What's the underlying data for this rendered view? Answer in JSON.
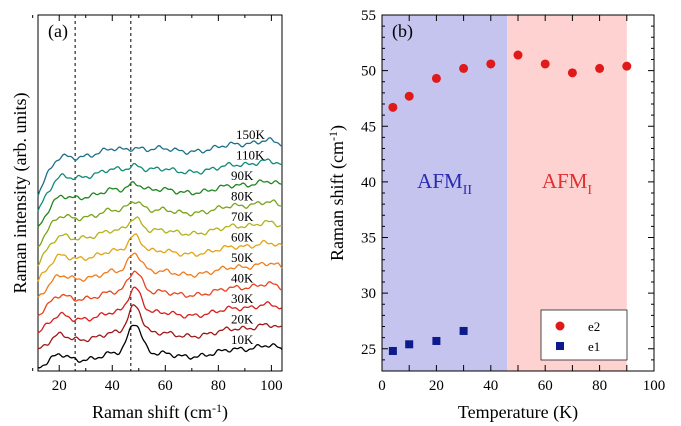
{
  "chart_data": [
    {
      "type": "line",
      "panel_label": "(a)",
      "xlabel": "Raman shift (cm-1)",
      "xlabel_base": "Raman shift (cm",
      "xlabel_sup": "-1",
      "xlabel_end": ")",
      "ylabel": "Raman intensity (arb. units)",
      "xlim": [
        12,
        104
      ],
      "xticks": [
        20,
        40,
        60,
        80,
        100
      ],
      "y_ticks_shown": false,
      "vlines": [
        26,
        47
      ],
      "series": [
        {
          "name": "150K",
          "color": "#1f6f8b"
        },
        {
          "name": "110K",
          "color": "#138a7a"
        },
        {
          "name": "90K",
          "color": "#21861f"
        },
        {
          "name": "80K",
          "color": "#7aa31c"
        },
        {
          "name": "70K",
          "color": "#b3b21a"
        },
        {
          "name": "60K",
          "color": "#e2a414"
        },
        {
          "name": "50K",
          "color": "#f07c1c"
        },
        {
          "name": "40K",
          "color": "#e9451f"
        },
        {
          "name": "30K",
          "color": "#d62020"
        },
        {
          "name": "20K",
          "color": "#9e1818"
        },
        {
          "name": "10K",
          "color": "#000000"
        }
      ]
    },
    {
      "type": "scatter",
      "panel_label": "(b)",
      "xlabel": "Temperature (K)",
      "ylabel": "Raman shift (cm-1)",
      "ylabel_base": "Raman shift (cm",
      "ylabel_sup": "-1",
      "ylabel_end": ")",
      "xlim": [
        0,
        100
      ],
      "ylim": [
        23,
        55
      ],
      "xticks": [
        0,
        10,
        20,
        30,
        40,
        50,
        60,
        70,
        80,
        90,
        100
      ],
      "yticks": [
        25,
        30,
        35,
        40,
        45,
        50,
        55
      ],
      "regions": [
        {
          "label_base": "AFM",
          "label_sub": "II",
          "x": [
            0,
            46
          ],
          "color": "#c4c4ee",
          "label_color": "#2b2bb0"
        },
        {
          "label_base": "AFM",
          "label_sub": "I",
          "x": [
            46,
            90
          ],
          "color": "#ffd2d2",
          "label_color": "#e03030"
        }
      ],
      "legend_position": "bottom-right",
      "series": [
        {
          "name": "e2",
          "marker": "circle",
          "color": "#e01919",
          "x": [
            4,
            10,
            20,
            30,
            40,
            50,
            60,
            70,
            80,
            90
          ],
          "y": [
            46.7,
            47.7,
            49.3,
            50.2,
            50.6,
            51.4,
            50.6,
            49.8,
            50.2,
            50.4
          ]
        },
        {
          "name": "e1",
          "marker": "square",
          "color": "#0d1a8c",
          "x": [
            4,
            10,
            20,
            30
          ],
          "y": [
            24.8,
            25.4,
            25.7,
            26.6
          ]
        }
      ]
    }
  ]
}
